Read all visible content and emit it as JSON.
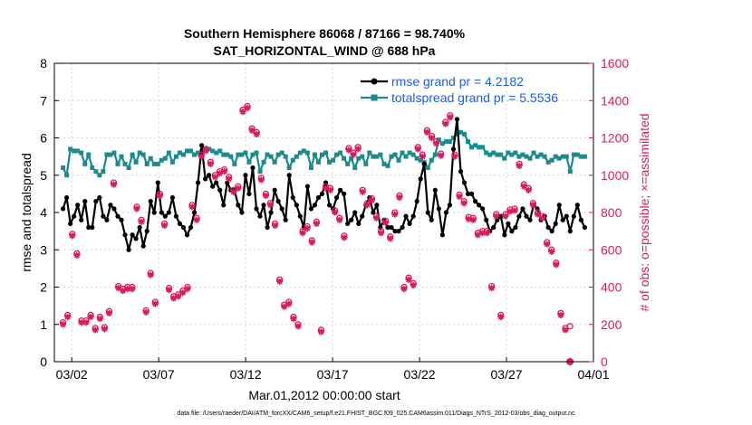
{
  "chart_data": {
    "type": "line",
    "title_line1": "Southern Hemisphere 86068 / 87166 = 98.740%",
    "title_line2": "SAT_HORIZONTAL_WIND @ 688 hPa",
    "xlabel": "Mar.01,2012 00:00:00 start",
    "ylabel_left": "rmse and totalspread",
    "ylabel_right": "# of obs: o=possible; ×=assimilated",
    "footnote": "data file: /Users/raeder/DAI/ATM_forcXX/CAM6_setup/f.e21.FHIST_BGC.f09_025.CAM6assim.011/Diags_NTrS_2012-03/obs_diag_output.nc",
    "x_range_days": [
      0.5,
      31.5
    ],
    "x_tick_days": [
      1.5,
      6.5,
      11.5,
      16.5,
      21.5,
      26.5,
      31.5
    ],
    "x_tick_labels": [
      "03/02",
      "03/07",
      "03/12",
      "03/17",
      "03/22",
      "03/27",
      "04/01"
    ],
    "ylim_left": [
      0,
      8
    ],
    "yticks_left": [
      "0",
      "1",
      "2",
      "3",
      "4",
      "5",
      "6",
      "7",
      "8"
    ],
    "ylim_right": [
      0,
      1600
    ],
    "yticks_right": [
      "0",
      "200",
      "400",
      "600",
      "800",
      "1000",
      "1200",
      "1400",
      "1600"
    ],
    "colors": {
      "rmse": "#000000",
      "spread": "#1a8c8c",
      "obs": "#d81b60",
      "legend_text": "#1f5fd8"
    },
    "series": [
      {
        "name": "rmse grand pr = 4.2182",
        "key": "rmse",
        "values": [
          4.1,
          4.4,
          3.7,
          3.9,
          4.2,
          3.8,
          4.3,
          3.6,
          3.6,
          4.3,
          4.4,
          3.9,
          3.8,
          4.2,
          4.1,
          3.9,
          3.8,
          3.4,
          3.0,
          3.4,
          3.3,
          3.6,
          3.1,
          3.5,
          4.3,
          4.0,
          4.8,
          4.0,
          3.9,
          4.0,
          4.4,
          3.9,
          3.7,
          3.6,
          3.4,
          3.6,
          4.0,
          4.8,
          5.8,
          4.9,
          5.0,
          4.7,
          4.8,
          4.6,
          4.2,
          4.8,
          4.6,
          4.6,
          4.2,
          4.0,
          5.0,
          4.5,
          5.2,
          4.1,
          3.9,
          4.2,
          3.6,
          4.0,
          4.6,
          4.3,
          4.1,
          3.8,
          5.0,
          4.4,
          4.2,
          3.9,
          3.6,
          4.7,
          4.1,
          4.2,
          4.4,
          4.5,
          4.8,
          4.2,
          4.1,
          4.4,
          4.6,
          4.5,
          3.7,
          3.8,
          4.0,
          3.7,
          3.9,
          4.2,
          4.4,
          4.0,
          4.2,
          3.6,
          3.8,
          3.6,
          3.6,
          3.5,
          3.5,
          3.6,
          3.9,
          3.7,
          3.9,
          4.3,
          4.9,
          5.3,
          4.0,
          3.8,
          4.6,
          4.1,
          3.4,
          4.0,
          4.2,
          5.7,
          6.5,
          5.1,
          4.8,
          4.5,
          4.5,
          4.3,
          4.2,
          4.1,
          3.8,
          3.5,
          3.6,
          3.8,
          3.9,
          3.4,
          3.7,
          3.5,
          3.6,
          3.9,
          4.1,
          3.9,
          3.8,
          4.2,
          4.1,
          3.8,
          3.9,
          3.6,
          3.5,
          3.7,
          4.2,
          3.8,
          3.9,
          3.5,
          3.9,
          4.2,
          3.8,
          3.6
        ],
        "color_key": "rmse"
      },
      {
        "name": "totalspread grand pr = 5.5536",
        "key": "spread",
        "values": [
          5.2,
          5.0,
          5.7,
          5.65,
          5.65,
          5.6,
          5.3,
          5.55,
          5.2,
          5.1,
          5.0,
          5.1,
          5.55,
          5.55,
          5.6,
          5.3,
          5.5,
          5.3,
          5.2,
          5.55,
          5.35,
          5.6,
          5.55,
          5.3,
          5.45,
          5.3,
          5.3,
          5.4,
          5.45,
          5.6,
          5.35,
          5.5,
          5.6,
          5.55,
          5.65,
          5.65,
          5.55,
          5.6,
          5.65,
          5.7,
          5.7,
          5.65,
          5.6,
          5.65,
          5.55,
          5.55,
          5.5,
          5.3,
          5.55,
          5.55,
          5.6,
          5.35,
          5.55,
          5.6,
          5.1,
          5.35,
          5.55,
          5.5,
          5.35,
          5.55,
          5.6,
          5.5,
          5.2,
          5.4,
          5.5,
          5.6,
          5.65,
          5.6,
          5.2,
          5.55,
          5.35,
          5.55,
          5.6,
          5.35,
          5.4,
          5.55,
          5.6,
          5.45,
          5.3,
          5.45,
          5.2,
          5.45,
          5.5,
          5.3,
          5.6,
          5.5,
          5.5,
          5.55,
          5.3,
          5.25,
          5.5,
          5.55,
          5.4,
          5.6,
          5.5,
          5.6,
          5.55,
          5.45,
          5.4,
          5.35,
          5.2,
          5.4,
          5.55,
          5.95,
          5.85,
          5.9,
          5.9,
          6.0,
          6.1,
          6.15,
          6.1,
          5.9,
          5.75,
          5.8,
          5.75,
          5.75,
          5.6,
          5.55,
          5.6,
          5.55,
          5.55,
          5.45,
          5.6,
          5.55,
          5.6,
          5.5,
          5.55,
          5.5,
          5.45,
          5.6,
          5.5,
          5.55,
          5.5,
          5.35,
          5.4,
          5.5,
          5.45,
          5.5,
          5.5,
          5.1,
          5.55,
          5.55,
          5.5,
          5.5
        ],
        "color_key": "spread"
      },
      {
        "name": "possible",
        "key": "possible",
        "values": [
          210,
          250,
          685,
          580,
          220,
          220,
          250,
          180,
          240,
          185,
          270,
          960,
          405,
          390,
          400,
          400,
          830,
          760,
          275,
          475,
          320,
          900,
          740,
          395,
          350,
          360,
          380,
          400,
          840,
          770,
          1110,
          1140,
          1070,
          1000,
          1020,
          1030,
          990,
          920,
          940,
          1350,
          1370,
          1250,
          1230,
          985,
          900,
          850,
          740,
          440,
          305,
          320,
          240,
          200,
          700,
          725,
          650,
          750,
          170,
          940,
          930,
          810,
          770,
          675,
          1145,
          1120,
          1150,
          920,
          850,
          875,
          780,
          700,
          755,
          670,
          800,
          890,
          400,
          450,
          420,
          1150,
          1110,
          1240,
          1210,
          1180,
          1115,
          1285,
          1320,
          1110,
          895,
          860,
          775,
          770,
          690,
          700,
          700,
          405,
          790,
          250,
          790,
          815,
          820,
          1060,
          950,
          930,
          850,
          800,
          780,
          640,
          600,
          530,
          260,
          180,
          190
        ],
        "x_start": 1.0,
        "x_step": 0.265,
        "color_key": "obs"
      },
      {
        "name": "assimilated",
        "key": "assimilated",
        "values": [
          200,
          240,
          675,
          570,
          210,
          210,
          240,
          170,
          230,
          175,
          260,
          950,
          395,
          380,
          390,
          390,
          820,
          750,
          265,
          465,
          310,
          890,
          730,
          385,
          340,
          350,
          370,
          390,
          830,
          760,
          1100,
          1130,
          1060,
          990,
          1010,
          1020,
          980,
          910,
          930,
          1340,
          1360,
          1240,
          1220,
          975,
          890,
          840,
          730,
          430,
          295,
          310,
          230,
          190,
          690,
          715,
          640,
          740,
          160,
          930,
          920,
          800,
          760,
          665,
          1135,
          1110,
          1140,
          910,
          840,
          865,
          770,
          690,
          745,
          660,
          790,
          880,
          390,
          440,
          410,
          1140,
          1100,
          1230,
          1200,
          1170,
          1105,
          1275,
          1310,
          1100,
          885,
          850,
          765,
          760,
          680,
          690,
          690,
          395,
          780,
          240,
          780,
          805,
          810,
          1050,
          940,
          920,
          840,
          790,
          770,
          630,
          590,
          520,
          250,
          170,
          0
        ],
        "x_start": 1.0,
        "x_step": 0.265,
        "color_key": "obs"
      }
    ]
  }
}
